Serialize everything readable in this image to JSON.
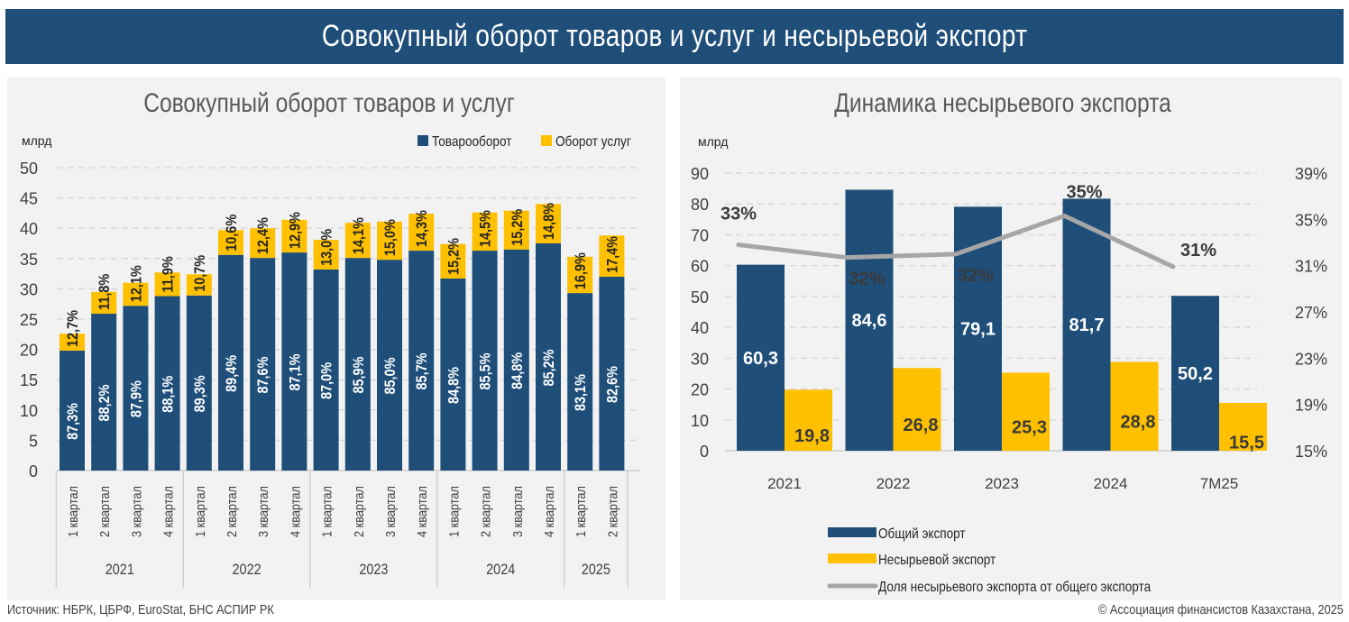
{
  "header": {
    "title": "Совокупный оборот товаров и услуг и несырьевой экспорт"
  },
  "colors": {
    "navy": "#1f4e79",
    "gold": "#ffc000",
    "gray_line": "#a6a6a6",
    "grid": "#d9d9d9"
  },
  "chart_data": [
    {
      "type": "bar",
      "stacked": true,
      "title": "Совокупный оборот товаров и услуг",
      "ylabel": "млрд",
      "ylim": [
        0,
        50
      ],
      "yticks": [
        0,
        5,
        10,
        15,
        20,
        25,
        30,
        35,
        40,
        45,
        50
      ],
      "grid": true,
      "legend_position": "top-right",
      "categories": [
        "1 квартал",
        "2 квартал",
        "3 квартал",
        "4 квартал",
        "1 квартал",
        "2 квартал",
        "3 квартал",
        "4 квартал",
        "1 квартал",
        "2 квартал",
        "3 квартал",
        "4 квартал",
        "1 квартал",
        "2 квартал",
        "3 квартал",
        "4 квартал",
        "1 квартал",
        "2 квартал"
      ],
      "groups": [
        {
          "label": "2021",
          "count": 4
        },
        {
          "label": "2022",
          "count": 4
        },
        {
          "label": "2023",
          "count": 4
        },
        {
          "label": "2024",
          "count": 4
        },
        {
          "label": "2025",
          "count": 2
        }
      ],
      "series": [
        {
          "name": "Товарооборот",
          "color": "#1f4e79",
          "values": [
            19.8,
            25.9,
            27.2,
            28.8,
            28.9,
            35.6,
            35.1,
            36.0,
            33.2,
            35.1,
            34.8,
            36.3,
            31.7,
            36.3,
            36.5,
            37.5,
            29.3,
            32.0
          ],
          "labels": [
            "87,3%",
            "88,2%",
            "87,9%",
            "88,1%",
            "89,3%",
            "89,4%",
            "87,6%",
            "87,1%",
            "87,0%",
            "85,9%",
            "85,0%",
            "85,7%",
            "84,8%",
            "85,5%",
            "84,8%",
            "85,2%",
            "83,1%",
            "82,6%"
          ]
        },
        {
          "name": "Оборот услуг",
          "color": "#ffc000",
          "values": [
            2.8,
            3.6,
            3.8,
            3.9,
            3.5,
            4.1,
            4.9,
            5.4,
            4.9,
            5.8,
            6.3,
            6.1,
            5.7,
            6.3,
            6.4,
            6.5,
            6.0,
            6.8
          ],
          "labels": [
            "12,7%",
            "11,8%",
            "12,1%",
            "11,9%",
            "10,7%",
            "10,6%",
            "12,4%",
            "12,9%",
            "13,0%",
            "14,1%",
            "15,0%",
            "14,3%",
            "15,2%",
            "14,5%",
            "15,2%",
            "14,8%",
            "16,9%",
            "17,4%"
          ]
        }
      ]
    },
    {
      "type": "bar",
      "title": "Динамика несырьевого экспорта",
      "ylabel": "млрд",
      "ylim": [
        0,
        90
      ],
      "yticks": [
        0,
        10,
        20,
        30,
        40,
        50,
        60,
        70,
        80,
        90
      ],
      "y2lim": [
        15,
        39
      ],
      "y2ticks": [
        "15%",
        "19%",
        "23%",
        "27%",
        "31%",
        "35%",
        "39%"
      ],
      "y2tick_values": [
        15,
        19,
        23,
        27,
        31,
        35,
        39
      ],
      "grid": true,
      "legend_position": "bottom-left",
      "categories": [
        "2021",
        "2022",
        "2023",
        "2024",
        "7M25"
      ],
      "series": [
        {
          "name": "Общий экспорт",
          "type": "bar",
          "color": "#1f4e79",
          "values": [
            60.3,
            84.6,
            79.1,
            81.7,
            50.2
          ],
          "labels": [
            "60,3",
            "84,6",
            "79,1",
            "81,7",
            "50,2"
          ]
        },
        {
          "name": "Несырьевой экспорт",
          "type": "bar",
          "color": "#ffc000",
          "values": [
            19.8,
            26.8,
            25.3,
            28.8,
            15.5
          ],
          "labels": [
            "19,8",
            "26,8",
            "25,3",
            "28,8",
            "15,5"
          ]
        },
        {
          "name": "Доля несырьевого экспорта от общего экспорта",
          "type": "line",
          "axis": "right",
          "color": "#a6a6a6",
          "values": [
            32.8,
            31.7,
            32.0,
            35.3,
            30.9
          ],
          "labels": [
            "33%",
            "32%",
            "32%",
            "35%",
            "31%"
          ]
        }
      ]
    }
  ],
  "footer": {
    "source": "Источник: НБРК, ЦБРФ, EuroStat, БНС АСПИР РК",
    "copyright": "© Ассоциация финансистов Казахстана, 2025"
  }
}
